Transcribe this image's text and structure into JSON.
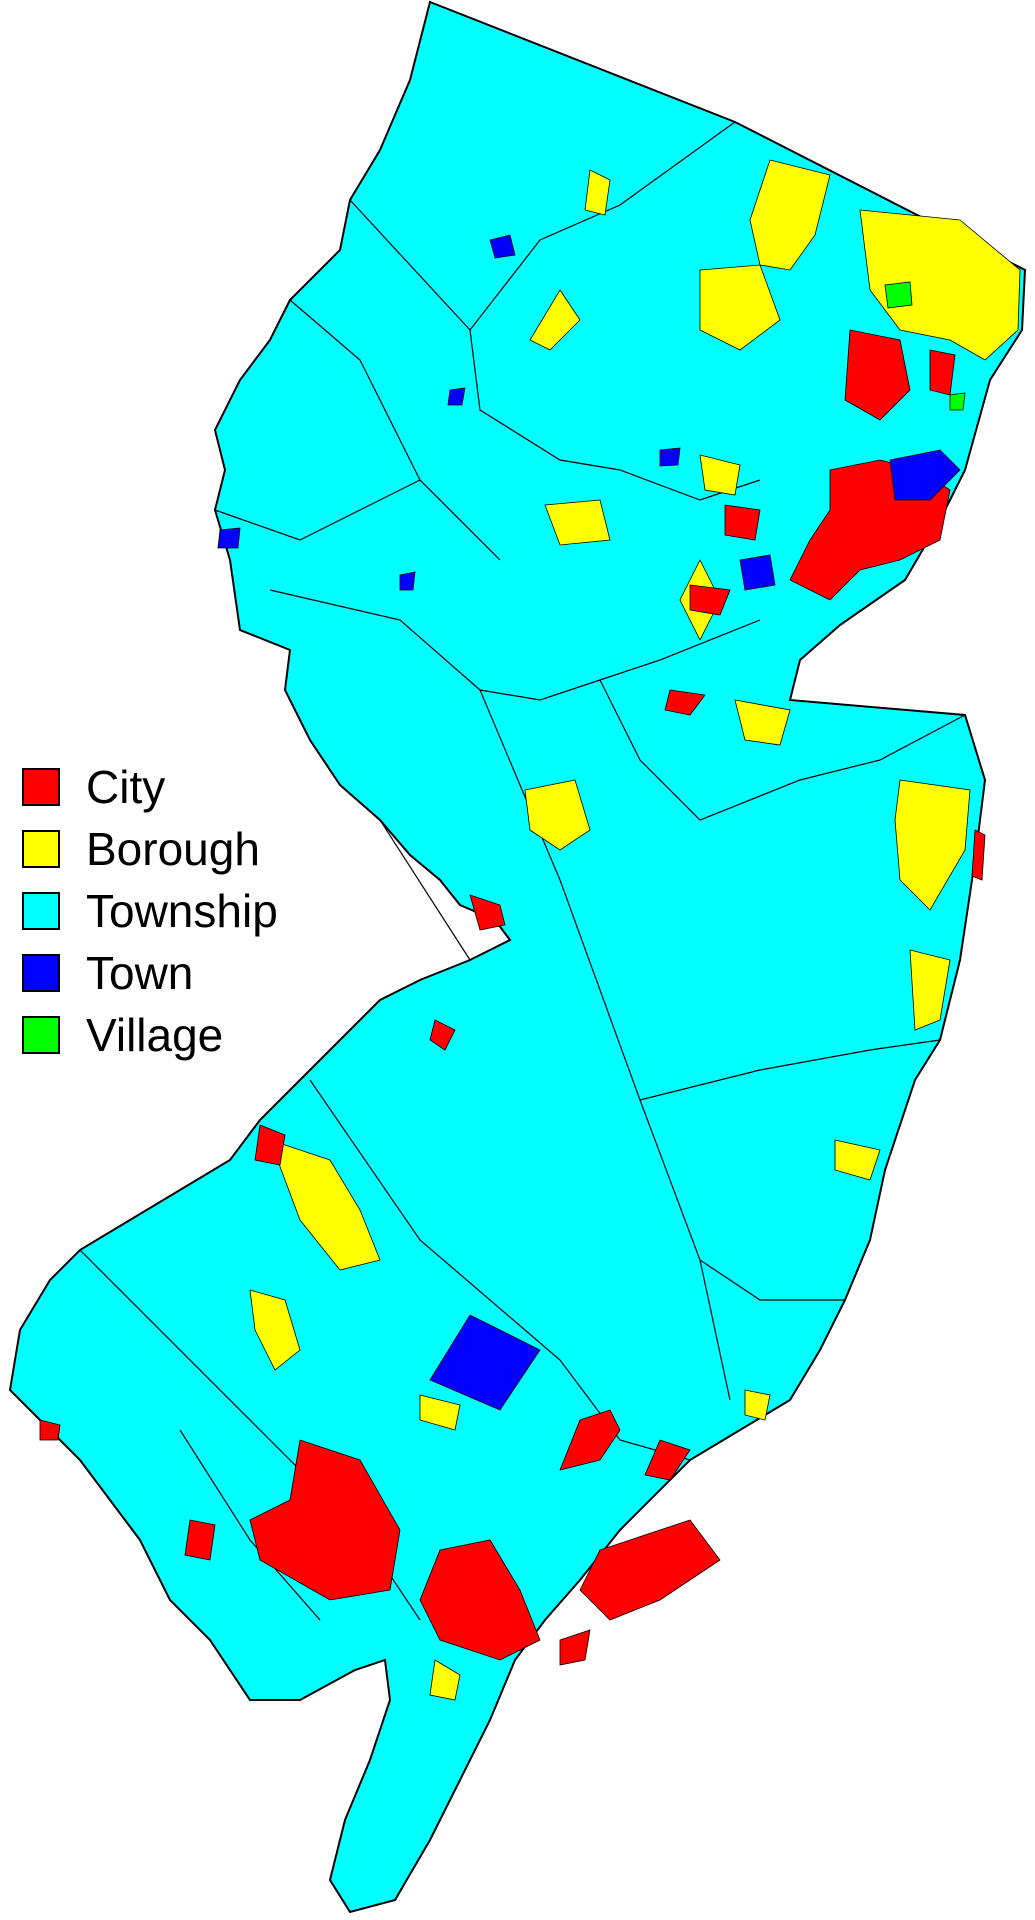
{
  "legend": {
    "items": [
      {
        "label": "City",
        "color": "#ff0000"
      },
      {
        "label": "Borough",
        "color": "#ffff00"
      },
      {
        "label": "Township",
        "color": "#00ffff"
      },
      {
        "label": "Town",
        "color": "#0000ff"
      },
      {
        "label": "Village",
        "color": "#00ff00"
      }
    ]
  },
  "map": {
    "region": "New Jersey",
    "land_color": "#00ffff",
    "border_color": "#000000",
    "background_color": "#ffffff"
  }
}
